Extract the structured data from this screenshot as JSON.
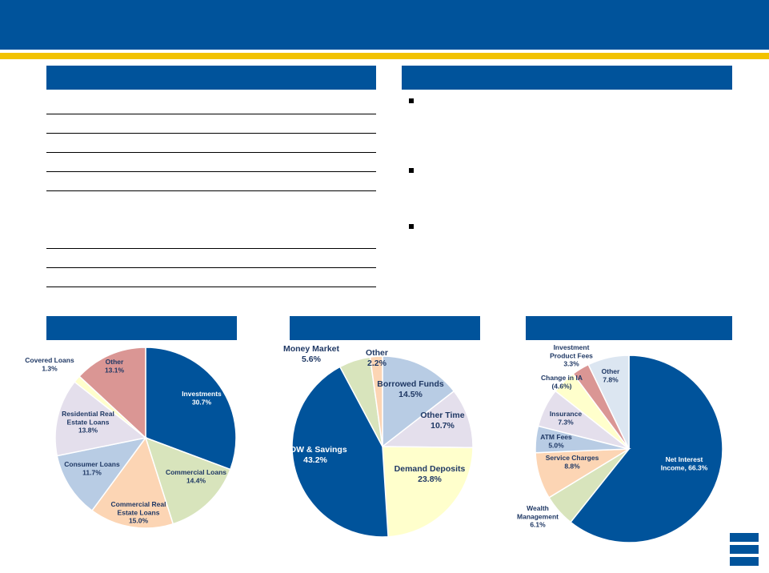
{
  "colors": {
    "brand_blue": "#00539b",
    "gold": "#f2c200",
    "dark_blue_text": "#1f3864",
    "white_text": "#ffffff"
  },
  "chart_data": [
    {
      "type": "pie",
      "title": "",
      "slices": [
        {
          "name": "Investments",
          "value": 30.7,
          "color": "#00539b",
          "label_lines": [
            "Investments",
            "30.7%"
          ],
          "label_color": "#ffffff"
        },
        {
          "name": "Commercial Loans",
          "value": 14.4,
          "color": "#d8e4bc",
          "label_lines": [
            "Commercial Loans",
            "14.4%"
          ],
          "label_color": "#1f3864"
        },
        {
          "name": "Commercial Real Estate Loans",
          "value": 15.0,
          "color": "#fcd5b4",
          "label_lines": [
            "Commercial Real",
            "Estate Loans",
            "15.0%"
          ],
          "label_color": "#1f3864"
        },
        {
          "name": "Consumer Loans",
          "value": 11.7,
          "color": "#b8cce4",
          "label_lines": [
            "Consumer Loans",
            "11.7%"
          ],
          "label_color": "#1f3864"
        },
        {
          "name": "Residential Real Estate Loans",
          "value": 13.8,
          "color": "#e4dfec",
          "label_lines": [
            "Residential Real",
            "Estate Loans",
            "13.8%"
          ],
          "label_color": "#1f3864"
        },
        {
          "name": "Covered Loans",
          "value": 1.3,
          "color": "#ffffcc",
          "label_lines": [
            "Covered Loans",
            "1.3%"
          ],
          "label_color": "#1f3864"
        },
        {
          "name": "Other",
          "value": 13.1,
          "color": "#da9694",
          "label_lines": [
            "Other",
            "13.1%"
          ],
          "label_color": "#1f3864"
        }
      ]
    },
    {
      "type": "pie",
      "title": "",
      "slices": [
        {
          "name": "Borrowed Funds",
          "value": 14.5,
          "color": "#b8cce4",
          "label_lines": [
            "Borrowed Funds",
            "14.5%"
          ],
          "label_color": "#1f3864"
        },
        {
          "name": "Other Time",
          "value": 10.7,
          "color": "#e4dfec",
          "label_lines": [
            "Other Time",
            "10.7%"
          ],
          "label_color": "#1f3864"
        },
        {
          "name": "Demand Deposits",
          "value": 23.8,
          "color": "#ffffcc",
          "label_lines": [
            "Demand Deposits",
            "23.8%"
          ],
          "label_color": "#1f3864"
        },
        {
          "name": "NOW & Savings",
          "value": 43.2,
          "color": "#00539b",
          "label_lines": [
            "NOW & Savings",
            "43.2%"
          ],
          "label_color": "#ffffff"
        },
        {
          "name": "Money Market",
          "value": 5.6,
          "color": "#d8e4bc",
          "label_lines": [
            "Money Market",
            "5.6%"
          ],
          "label_color": "#1f3864"
        },
        {
          "name": "Other",
          "value": 2.2,
          "color": "#fcd5b4",
          "label_lines": [
            "Other",
            "2.2%"
          ],
          "label_color": "#1f3864"
        }
      ]
    },
    {
      "type": "pie",
      "title": "",
      "slices": [
        {
          "name": "Net Interest Income",
          "value": 66.3,
          "color": "#00539b",
          "label_lines": [
            "Net Interest",
            "Income, 66.3%"
          ],
          "label_color": "#ffffff"
        },
        {
          "name": "Wealth Management",
          "value": 6.1,
          "color": "#d8e4bc",
          "label_lines": [
            "Wealth",
            "Management",
            "6.1%"
          ],
          "label_color": "#1f3864"
        },
        {
          "name": "Service Charges",
          "value": 8.8,
          "color": "#fcd5b4",
          "label_lines": [
            "Service Charges",
            "8.8%"
          ],
          "label_color": "#1f3864"
        },
        {
          "name": "ATM Fees",
          "value": 5.0,
          "color": "#b8cce4",
          "label_lines": [
            "ATM Fees",
            "5.0%"
          ],
          "label_color": "#1f3864"
        },
        {
          "name": "Insurance",
          "value": 7.3,
          "color": "#e4dfec",
          "label_lines": [
            "Insurance",
            "7.3%"
          ],
          "label_color": "#1f3864"
        },
        {
          "name": "Change in IA",
          "value": 4.6,
          "color": "#ffffcc",
          "label_lines": [
            "Change in IA",
            "(4.6%)"
          ],
          "label_color": "#1f3864"
        },
        {
          "name": "Investment Product Fees",
          "value": 3.3,
          "color": "#da9694",
          "label_lines": [
            "Investment",
            "Product Fees",
            "3.3%"
          ],
          "label_color": "#1f3864"
        },
        {
          "name": "Other",
          "value": 7.8,
          "color": "#dce6f1",
          "label_lines": [
            "Other",
            "7.8%"
          ],
          "label_color": "#1f3864"
        }
      ]
    }
  ]
}
